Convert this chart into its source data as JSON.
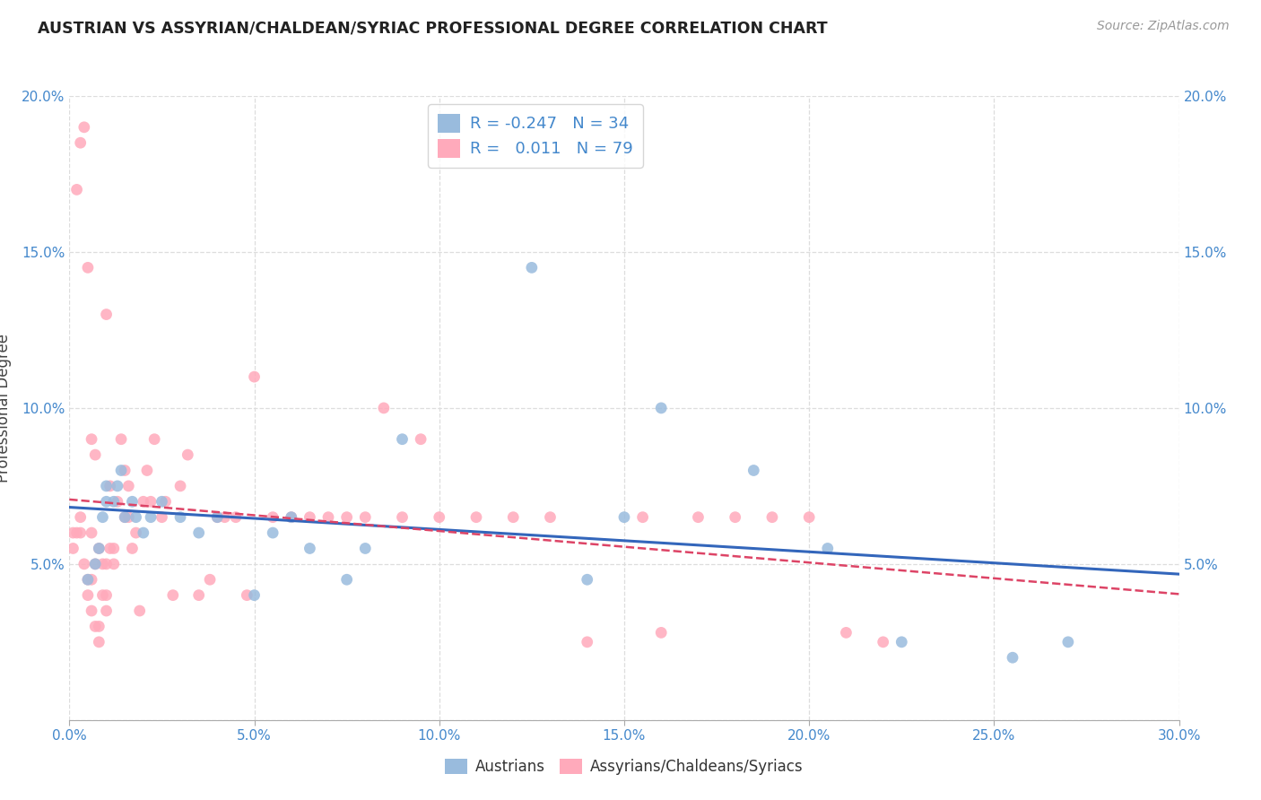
{
  "title": "AUSTRIAN VS ASSYRIAN/CHALDEAN/SYRIAC PROFESSIONAL DEGREE CORRELATION CHART",
  "source": "Source: ZipAtlas.com",
  "ylabel": "Professional Degree",
  "background_color": "#ffffff",
  "blue_scatter_color": "#99bbdd",
  "pink_scatter_color": "#ffaabb",
  "blue_line_color": "#3366bb",
  "pink_line_color": "#dd4466",
  "tick_color": "#4488cc",
  "xlim": [
    0.0,
    0.3
  ],
  "ylim": [
    0.0,
    0.2
  ],
  "xticks": [
    0.0,
    0.05,
    0.1,
    0.15,
    0.2,
    0.25,
    0.3
  ],
  "yticks": [
    0.0,
    0.05,
    0.1,
    0.15,
    0.2
  ],
  "blue_x": [
    0.005,
    0.007,
    0.008,
    0.009,
    0.01,
    0.01,
    0.012,
    0.013,
    0.014,
    0.015,
    0.017,
    0.018,
    0.02,
    0.022,
    0.025,
    0.03,
    0.035,
    0.04,
    0.05,
    0.055,
    0.06,
    0.065,
    0.075,
    0.08,
    0.09,
    0.125,
    0.14,
    0.15,
    0.16,
    0.185,
    0.205,
    0.225,
    0.255,
    0.27
  ],
  "blue_y": [
    0.045,
    0.05,
    0.055,
    0.065,
    0.07,
    0.075,
    0.07,
    0.075,
    0.08,
    0.065,
    0.07,
    0.065,
    0.06,
    0.065,
    0.07,
    0.065,
    0.06,
    0.065,
    0.04,
    0.06,
    0.065,
    0.055,
    0.045,
    0.055,
    0.09,
    0.145,
    0.045,
    0.065,
    0.1,
    0.08,
    0.055,
    0.025,
    0.02,
    0.025
  ],
  "pink_x": [
    0.001,
    0.002,
    0.002,
    0.003,
    0.003,
    0.004,
    0.004,
    0.005,
    0.005,
    0.005,
    0.006,
    0.006,
    0.006,
    0.007,
    0.007,
    0.007,
    0.008,
    0.008,
    0.008,
    0.009,
    0.009,
    0.01,
    0.01,
    0.01,
    0.011,
    0.011,
    0.012,
    0.012,
    0.013,
    0.014,
    0.015,
    0.015,
    0.016,
    0.016,
    0.017,
    0.018,
    0.019,
    0.02,
    0.021,
    0.022,
    0.023,
    0.025,
    0.026,
    0.028,
    0.03,
    0.032,
    0.035,
    0.038,
    0.04,
    0.042,
    0.045,
    0.048,
    0.05,
    0.055,
    0.06,
    0.065,
    0.07,
    0.075,
    0.08,
    0.085,
    0.09,
    0.095,
    0.1,
    0.11,
    0.12,
    0.13,
    0.14,
    0.155,
    0.16,
    0.17,
    0.18,
    0.19,
    0.2,
    0.21,
    0.22,
    0.001,
    0.003,
    0.006,
    0.01
  ],
  "pink_y": [
    0.055,
    0.06,
    0.17,
    0.06,
    0.185,
    0.05,
    0.19,
    0.04,
    0.045,
    0.145,
    0.035,
    0.045,
    0.09,
    0.03,
    0.05,
    0.085,
    0.025,
    0.03,
    0.055,
    0.04,
    0.05,
    0.035,
    0.04,
    0.05,
    0.055,
    0.075,
    0.05,
    0.055,
    0.07,
    0.09,
    0.065,
    0.08,
    0.065,
    0.075,
    0.055,
    0.06,
    0.035,
    0.07,
    0.08,
    0.07,
    0.09,
    0.065,
    0.07,
    0.04,
    0.075,
    0.085,
    0.04,
    0.045,
    0.065,
    0.065,
    0.065,
    0.04,
    0.11,
    0.065,
    0.065,
    0.065,
    0.065,
    0.065,
    0.065,
    0.1,
    0.065,
    0.09,
    0.065,
    0.065,
    0.065,
    0.065,
    0.025,
    0.065,
    0.028,
    0.065,
    0.065,
    0.065,
    0.065,
    0.028,
    0.025,
    0.06,
    0.065,
    0.06,
    0.13
  ]
}
